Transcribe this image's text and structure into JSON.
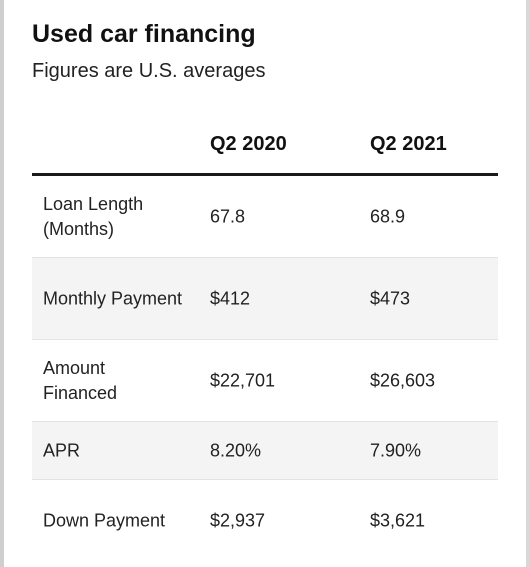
{
  "chart_data": {
    "type": "table",
    "title": "Used car financing",
    "subtitle": "Figures are U.S. averages",
    "columns": [
      "",
      "Q2 2020",
      "Q2 2021"
    ],
    "rows": [
      {
        "label": "Loan Length (Months)",
        "values": [
          "67.8",
          "68.9"
        ]
      },
      {
        "label": "Monthly Payment",
        "values": [
          "$412",
          "$473"
        ]
      },
      {
        "label": "Amount Financed",
        "values": [
          "$22,701",
          "$26,603"
        ]
      },
      {
        "label": "APR",
        "values": [
          "8.20%",
          "7.90%"
        ]
      },
      {
        "label": "Down Payment",
        "values": [
          "$2,937",
          "$3,621"
        ]
      }
    ]
  }
}
